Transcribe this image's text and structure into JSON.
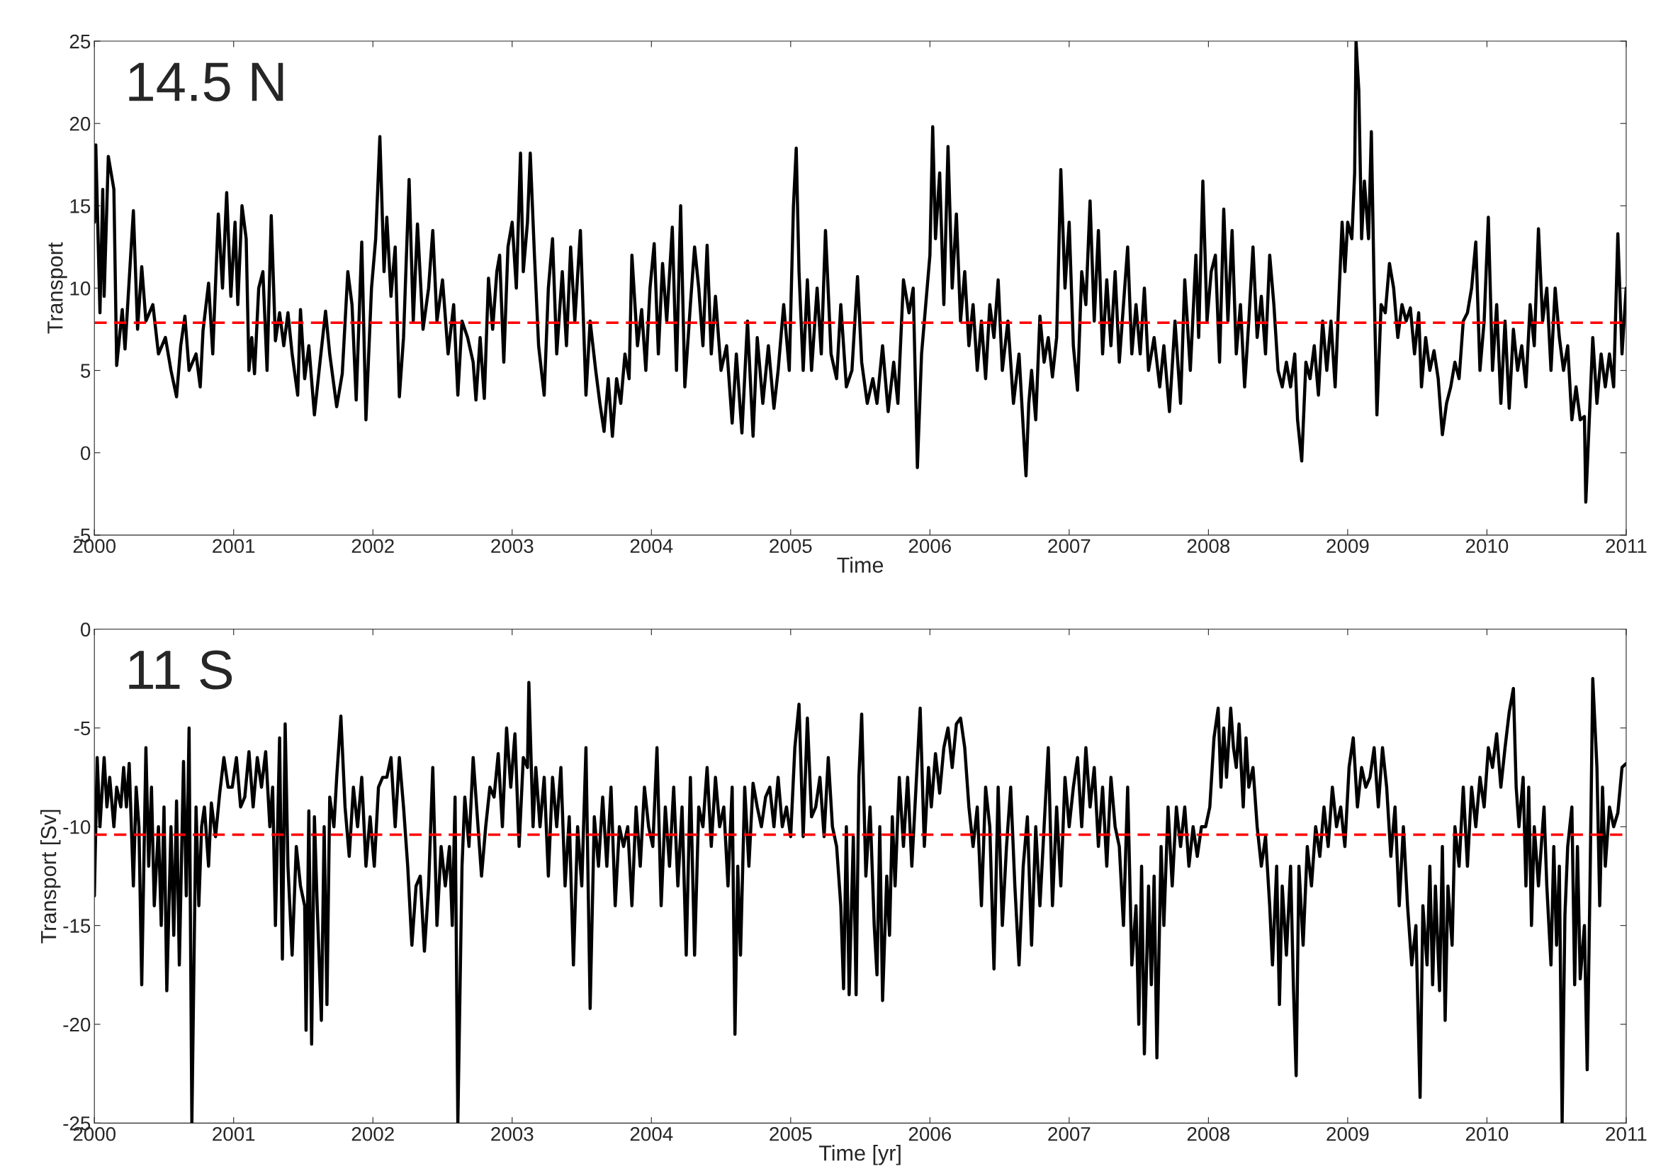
{
  "chart_data": [
    {
      "type": "line",
      "xlabel": "Time",
      "ylabel": "Transport",
      "annotations": [
        "14.5 N"
      ],
      "xlim": [
        2000,
        2011
      ],
      "xticks": [
        2000,
        2001,
        2002,
        2003,
        2004,
        2005,
        2006,
        2007,
        2008,
        2009,
        2010,
        2011
      ],
      "ylim": [
        -5,
        25
      ],
      "yticks": [
        -5,
        0,
        5,
        10,
        15,
        20,
        25
      ],
      "ref_lines": [
        {
          "axis": "y",
          "value": 7.9,
          "color": "#ff0000",
          "line_style": "dashed"
        }
      ],
      "x": [
        2000.0,
        2000.01,
        2000.04,
        2000.06,
        2000.07,
        2000.1,
        2000.14,
        2000.16,
        2000.2,
        2000.22,
        2000.25,
        2000.28,
        2000.31,
        2000.34,
        2000.37,
        2000.42,
        2000.46,
        2000.51,
        2000.55,
        2000.59,
        2000.62,
        2000.65,
        2000.68,
        2000.73,
        2000.76,
        2000.78,
        2000.82,
        2000.85,
        2000.89,
        2000.92,
        2000.95,
        2000.98,
        2001.01,
        2001.03,
        2001.06,
        2001.09,
        2001.11,
        2001.13,
        2001.15,
        2001.18,
        2001.21,
        2001.24,
        2001.27,
        2001.3,
        2001.33,
        2001.36,
        2001.39,
        2001.42,
        2001.46,
        2001.48,
        2001.51,
        2001.54,
        2001.58,
        2001.62,
        2001.66,
        2001.69,
        2001.74,
        2001.78,
        2001.82,
        2001.85,
        2001.88,
        2001.92,
        2001.95,
        2001.99,
        2002.02,
        2002.05,
        2002.08,
        2002.1,
        2002.13,
        2002.16,
        2002.19,
        2002.22,
        2002.26,
        2002.29,
        2002.32,
        2002.36,
        2002.4,
        2002.43,
        2002.46,
        2002.5,
        2002.54,
        2002.58,
        2002.61,
        2002.64,
        2002.68,
        2002.72,
        2002.74,
        2002.77,
        2002.8,
        2002.83,
        2002.86,
        2002.89,
        2002.91,
        2002.94,
        2002.97,
        2003.0,
        2003.03,
        2003.06,
        2003.08,
        2003.11,
        2003.13,
        2003.16,
        2003.19,
        2003.23,
        2003.26,
        2003.29,
        2003.32,
        2003.36,
        2003.39,
        2003.42,
        2003.45,
        2003.49,
        2003.53,
        2003.56,
        2003.6,
        2003.63,
        2003.66,
        2003.69,
        2003.72,
        2003.75,
        2003.78,
        2003.81,
        2003.84,
        2003.86,
        2003.9,
        2003.93,
        2003.96,
        2003.99,
        2004.02,
        2004.05,
        2004.08,
        2004.11,
        2004.15,
        2004.18,
        2004.21,
        2004.24,
        2004.28,
        2004.31,
        2004.34,
        2004.37,
        2004.4,
        2004.43,
        2004.46,
        2004.5,
        2004.54,
        2004.58,
        2004.61,
        2004.65,
        2004.69,
        2004.73,
        2004.76,
        2004.8,
        2004.84,
        2004.88,
        2004.91,
        2004.95,
        2004.99,
        2005.02,
        2005.04,
        2005.06,
        2005.09,
        2005.12,
        2005.15,
        2005.19,
        2005.22,
        2005.25,
        2005.29,
        2005.33,
        2005.36,
        2005.4,
        2005.44,
        2005.48,
        2005.51,
        2005.55,
        2005.59,
        2005.62,
        2005.66,
        2005.7,
        2005.74,
        2005.77,
        2005.81,
        2005.85,
        2005.88,
        2005.91,
        2005.94,
        2005.97,
        2006.0,
        2006.02,
        2006.04,
        2006.07,
        2006.1,
        2006.13,
        2006.16,
        2006.19,
        2006.22,
        2006.25,
        2006.28,
        2006.31,
        2006.34,
        2006.37,
        2006.4,
        2006.43,
        2006.46,
        2006.49,
        2006.52,
        2006.56,
        2006.6,
        2006.64,
        2006.67,
        2006.69,
        2006.71,
        2006.73,
        2006.76,
        2006.79,
        2006.82,
        2006.85,
        2006.88,
        2006.91,
        2006.94,
        2006.97,
        2007.0,
        2007.03,
        2007.06,
        2007.09,
        2007.12,
        2007.15,
        2007.18,
        2007.21,
        2007.24,
        2007.27,
        2007.3,
        2007.33,
        2007.36,
        2007.39,
        2007.42,
        2007.45,
        2007.48,
        2007.51,
        2007.54,
        2007.57,
        2007.61,
        2007.65,
        2007.68,
        2007.72,
        2007.76,
        2007.8,
        2007.83,
        2007.87,
        2007.91,
        2007.93,
        2007.96,
        2007.99,
        2008.02,
        2008.05,
        2008.08,
        2008.11,
        2008.14,
        2008.17,
        2008.2,
        2008.23,
        2008.26,
        2008.29,
        2008.32,
        2008.35,
        2008.38,
        2008.41,
        2008.44,
        2008.47,
        2008.5,
        2008.53,
        2008.56,
        2008.59,
        2008.62,
        2008.64,
        2008.67,
        2008.7,
        2008.73,
        2008.76,
        2008.79,
        2008.82,
        2008.85,
        2008.88,
        2008.91,
        2008.94,
        2008.96,
        2008.98,
        2009.0,
        2009.03,
        2009.05,
        2009.06,
        2009.08,
        2009.1,
        2009.12,
        2009.15,
        2009.17,
        2009.19,
        2009.21,
        2009.24,
        2009.27,
        2009.3,
        2009.33,
        2009.36,
        2009.39,
        2009.42,
        2009.45,
        2009.48,
        2009.51,
        2009.53,
        2009.56,
        2009.59,
        2009.62,
        2009.65,
        2009.68,
        2009.71,
        2009.74,
        2009.77,
        2009.8,
        2009.83,
        2009.86,
        2009.89,
        2009.92,
        2009.95,
        2009.98,
        2010.01,
        2010.04,
        2010.07,
        2010.1,
        2010.13,
        2010.16,
        2010.19,
        2010.22,
        2010.25,
        2010.28,
        2010.31,
        2010.34,
        2010.37,
        2010.4,
        2010.43,
        2010.46,
        2010.49,
        2010.52,
        2010.55,
        2010.58,
        2010.61,
        2010.64,
        2010.67,
        2010.7,
        2010.71,
        2010.73,
        2010.76,
        2010.79,
        2010.82,
        2010.85,
        2010.88,
        2010.91,
        2010.94,
        2010.97,
        2011.0
      ],
      "series": [
        {
          "color": "#000000",
          "values": [
            14,
            18.7,
            8.5,
            16,
            9.5,
            18,
            16,
            5.3,
            8.7,
            6.3,
            10.5,
            14.7,
            7.5,
            11.3,
            8,
            9,
            6,
            7,
            5,
            3.4,
            6.5,
            8.3,
            5,
            6,
            4,
            7.4,
            10.3,
            6,
            14.5,
            10,
            15.8,
            9.5,
            14,
            9,
            15,
            13,
            5,
            7,
            4.8,
            10,
            11,
            5,
            14.4,
            6.8,
            8.5,
            6.5,
            8.5,
            6,
            3.5,
            8.7,
            4.5,
            6.5,
            2.3,
            5.5,
            8.6,
            6,
            2.8,
            4.8,
            11,
            9,
            3.2,
            12.8,
            2,
            10,
            13,
            19.2,
            11,
            14.3,
            9.5,
            12.5,
            3.4,
            7,
            16.6,
            8,
            13.9,
            7.5,
            10,
            13.5,
            8,
            10.5,
            6,
            9,
            3.5,
            8,
            7,
            5.5,
            3.2,
            7,
            3.3,
            10.6,
            7.5,
            11,
            12,
            5.5,
            12.5,
            14,
            10,
            18.2,
            11,
            14,
            18.2,
            12,
            6.5,
            3.5,
            10,
            13,
            6,
            11,
            6.5,
            12.5,
            8,
            13.5,
            3.5,
            8,
            5,
            3,
            1.3,
            4.5,
            1,
            4.5,
            3,
            6,
            4.5,
            12,
            6.5,
            8.7,
            5,
            10,
            12.7,
            6,
            11.5,
            8,
            13.7,
            5,
            15,
            4,
            9,
            12.5,
            10,
            6.5,
            12.6,
            6,
            9.5,
            5,
            6.5,
            1.8,
            6,
            1.2,
            8,
            1,
            7,
            3,
            6.5,
            2.7,
            5,
            9,
            5,
            15,
            18.5,
            11,
            5,
            10.5,
            5,
            10,
            6,
            13.5,
            6,
            4.5,
            9,
            4,
            5,
            10.7,
            5.5,
            3,
            4.5,
            3,
            6.5,
            2.5,
            5.5,
            3,
            10.5,
            8.5,
            10,
            -0.9,
            6,
            9,
            12,
            19.8,
            13,
            17,
            9,
            18.6,
            10,
            14.5,
            8,
            11,
            6.5,
            9,
            5,
            8,
            4.5,
            9,
            7,
            10.5,
            5,
            8,
            3,
            6,
            1.5,
            -1.4,
            3,
            5,
            2,
            8.3,
            5.5,
            7,
            4.6,
            7,
            17.2,
            10,
            14,
            6.5,
            3.8,
            11,
            9,
            15.3,
            8,
            13.5,
            6,
            10.5,
            6.5,
            11,
            5.5,
            9,
            12.5,
            6,
            9,
            6,
            10,
            5,
            7,
            4,
            6.5,
            2.5,
            8,
            3,
            10.5,
            5,
            12,
            7,
            16.5,
            8,
            11,
            12,
            5.5,
            14.8,
            8,
            13.5,
            6,
            9,
            4,
            8,
            12.5,
            7,
            9.5,
            6,
            12,
            9,
            5,
            4,
            5.5,
            4,
            6,
            2,
            -0.5,
            5.5,
            4.5,
            6.5,
            3.5,
            8,
            5,
            8,
            4,
            10,
            14,
            11,
            14,
            13,
            17,
            25,
            22,
            13,
            16.5,
            13,
            19.5,
            10,
            2.3,
            9,
            8.5,
            11.5,
            10,
            7,
            9,
            8,
            8.8,
            6,
            8.5,
            4,
            7,
            5,
            6.2,
            4.5,
            1.1,
            3,
            4,
            5.5,
            4.5,
            8,
            8.5,
            10,
            12.8,
            5,
            8,
            14.3,
            5,
            9,
            3,
            8,
            2.7,
            7.5,
            5,
            6.5,
            4,
            9,
            6.5,
            13.6,
            8,
            10,
            5,
            10,
            7,
            5,
            6.5,
            2,
            4,
            2,
            2.2,
            -3,
            1,
            7,
            3,
            6,
            4,
            6,
            4,
            13.3,
            6,
            10
          ]
        }
      ]
    },
    {
      "type": "line",
      "xlabel": "Time [yr]",
      "ylabel": "Transport [Sv]",
      "annotations": [
        "11 S"
      ],
      "xlim": [
        2000,
        2011
      ],
      "xticks": [
        2000,
        2001,
        2002,
        2003,
        2004,
        2005,
        2006,
        2007,
        2008,
        2009,
        2010,
        2011
      ],
      "ylim": [
        -25,
        0
      ],
      "yticks": [
        -25,
        -20,
        -15,
        -10,
        -5,
        0
      ],
      "ref_lines": [
        {
          "axis": "y",
          "value": -10.4,
          "color": "#ff0000",
          "line_style": "dashed"
        }
      ],
      "x": [
        2000.0,
        2000.02,
        2000.04,
        2000.07,
        2000.09,
        2000.11,
        2000.14,
        2000.16,
        2000.19,
        2000.21,
        2000.23,
        2000.25,
        2000.28,
        2000.3,
        2000.32,
        2000.34,
        2000.37,
        2000.39,
        2000.41,
        2000.43,
        2000.46,
        2000.48,
        2000.5,
        2000.52,
        2000.55,
        2000.57,
        2000.59,
        2000.61,
        2000.64,
        2000.66,
        2000.68,
        2000.7,
        2000.73,
        2000.75,
        2000.77,
        2000.79,
        2000.82,
        2000.84,
        2000.87,
        2000.9,
        2000.93,
        2000.96,
        2000.99,
        2001.02,
        2001.05,
        2001.08,
        2001.11,
        2001.14,
        2001.17,
        2001.2,
        2001.23,
        2001.26,
        2001.28,
        2001.3,
        2001.33,
        2001.35,
        2001.37,
        2001.39,
        2001.42,
        2001.45,
        2001.48,
        2001.51,
        2001.52,
        2001.54,
        2001.56,
        2001.58,
        2001.6,
        2001.63,
        2001.65,
        2001.67,
        2001.69,
        2001.72,
        2001.74,
        2001.77,
        2001.8,
        2001.83,
        2001.86,
        2001.89,
        2001.92,
        2001.95,
        2001.98,
        2002.01,
        2002.04,
        2002.07,
        2002.1,
        2002.13,
        2002.16,
        2002.19,
        2002.22,
        2002.25,
        2002.28,
        2002.31,
        2002.34,
        2002.37,
        2002.4,
        2002.43,
        2002.46,
        2002.49,
        2002.52,
        2002.55,
        2002.57,
        2002.59,
        2002.61,
        2002.64,
        2002.66,
        2002.69,
        2002.72,
        2002.75,
        2002.78,
        2002.81,
        2002.84,
        2002.87,
        2002.9,
        2002.93,
        2002.96,
        2002.99,
        2003.02,
        2003.05,
        2003.08,
        2003.11,
        2003.12,
        2003.15,
        2003.17,
        2003.2,
        2003.23,
        2003.26,
        2003.29,
        2003.32,
        2003.35,
        2003.38,
        2003.41,
        2003.44,
        2003.47,
        2003.5,
        2003.53,
        2003.56,
        2003.59,
        2003.62,
        2003.65,
        2003.68,
        2003.71,
        2003.74,
        2003.77,
        2003.8,
        2003.83,
        2003.86,
        2003.89,
        2003.92,
        2003.95,
        2003.98,
        2004.01,
        2004.04,
        2004.07,
        2004.1,
        2004.13,
        2004.16,
        2004.19,
        2004.22,
        2004.25,
        2004.28,
        2004.31,
        2004.34,
        2004.37,
        2004.4,
        2004.43,
        2004.46,
        2004.49,
        2004.52,
        2004.55,
        2004.58,
        2004.6,
        2004.62,
        2004.64,
        2004.67,
        2004.7,
        2004.73,
        2004.76,
        2004.79,
        2004.82,
        2004.85,
        2004.88,
        2004.91,
        2004.94,
        2004.97,
        2005.0,
        2005.03,
        2005.06,
        2005.09,
        2005.12,
        2005.15,
        2005.18,
        2005.21,
        2005.24,
        2005.27,
        2005.3,
        2005.33,
        2005.36,
        2005.38,
        2005.4,
        2005.42,
        2005.45,
        2005.47,
        2005.49,
        2005.51,
        2005.54,
        2005.57,
        2005.6,
        2005.62,
        2005.64,
        2005.66,
        2005.69,
        2005.71,
        2005.73,
        2005.75,
        2005.78,
        2005.81,
        2005.84,
        2005.87,
        2005.9,
        2005.93,
        2005.96,
        2005.99,
        2006.01,
        2006.04,
        2006.07,
        2006.1,
        2006.13,
        2006.16,
        2006.19,
        2006.22,
        2006.25,
        2006.28,
        2006.31,
        2006.34,
        2006.37,
        2006.4,
        2006.43,
        2006.46,
        2006.49,
        2006.52,
        2006.55,
        2006.58,
        2006.61,
        2006.64,
        2006.67,
        2006.7,
        2006.73,
        2006.76,
        2006.79,
        2006.82,
        2006.85,
        2006.88,
        2006.91,
        2006.94,
        2006.97,
        2007.0,
        2007.03,
        2007.06,
        2007.09,
        2007.12,
        2007.15,
        2007.18,
        2007.21,
        2007.24,
        2007.27,
        2007.3,
        2007.33,
        2007.36,
        2007.39,
        2007.42,
        2007.45,
        2007.48,
        2007.5,
        2007.52,
        2007.54,
        2007.57,
        2007.59,
        2007.61,
        2007.63,
        2007.66,
        2007.68,
        2007.71,
        2007.74,
        2007.77,
        2007.8,
        2007.83,
        2007.86,
        2007.89,
        2007.92,
        2007.95,
        2007.98,
        2008.01,
        2008.04,
        2008.07,
        2008.09,
        2008.11,
        2008.13,
        2008.16,
        2008.18,
        2008.2,
        2008.22,
        2008.25,
        2008.27,
        2008.29,
        2008.32,
        2008.35,
        2008.38,
        2008.41,
        2008.44,
        2008.46,
        2008.49,
        2008.51,
        2008.53,
        2008.56,
        2008.59,
        2008.61,
        2008.63,
        2008.65,
        2008.68,
        2008.71,
        2008.74,
        2008.77,
        2008.8,
        2008.83,
        2008.86,
        2008.89,
        2008.92,
        2008.95,
        2008.98,
        2009.01,
        2009.04,
        2009.07,
        2009.1,
        2009.13,
        2009.16,
        2009.19,
        2009.22,
        2009.25,
        2009.28,
        2009.31,
        2009.34,
        2009.37,
        2009.4,
        2009.43,
        2009.46,
        2009.49,
        2009.52,
        2009.54,
        2009.57,
        2009.59,
        2009.61,
        2009.63,
        2009.66,
        2009.68,
        2009.7,
        2009.72,
        2009.75,
        2009.77,
        2009.8,
        2009.83,
        2009.86,
        2009.89,
        2009.92,
        2009.95,
        2009.98,
        2010.01,
        2010.04,
        2010.07,
        2010.1,
        2010.13,
        2010.16,
        2010.19,
        2010.21,
        2010.23,
        2010.26,
        2010.28,
        2010.3,
        2010.32,
        2010.34,
        2010.37,
        2010.39,
        2010.41,
        2010.43,
        2010.46,
        2010.48,
        2010.5,
        2010.52,
        2010.54,
        2010.56,
        2010.58,
        2010.61,
        2010.63,
        2010.65,
        2010.67,
        2010.7,
        2010.72,
        2010.74,
        2010.76,
        2010.79,
        2010.81,
        2010.83,
        2010.85,
        2010.88,
        2010.91,
        2010.94,
        2010.97,
        2011.0
      ],
      "series": [
        {
          "color": "#000000",
          "values": [
            -13.5,
            -6.5,
            -10,
            -6.5,
            -9,
            -7.5,
            -10,
            -8,
            -9,
            -7,
            -9,
            -6.8,
            -13,
            -8,
            -10,
            -18,
            -6,
            -12,
            -8,
            -14,
            -10,
            -15,
            -9,
            -18.3,
            -10,
            -15.5,
            -8.7,
            -17,
            -6.7,
            -13.5,
            -5,
            -25,
            -9,
            -14,
            -10,
            -9,
            -12,
            -8.8,
            -10.5,
            -8.3,
            -6.5,
            -8,
            -8,
            -6.5,
            -9,
            -8.5,
            -6.2,
            -9,
            -6.5,
            -8,
            -6.2,
            -10,
            -8,
            -15,
            -5.5,
            -16.7,
            -4.8,
            -12,
            -16.5,
            -11,
            -13,
            -14,
            -20.3,
            -9.2,
            -21,
            -9.5,
            -14,
            -19.8,
            -10,
            -19,
            -8.5,
            -10,
            -7.5,
            -4.4,
            -9,
            -11.5,
            -8,
            -10,
            -7.5,
            -12,
            -9.5,
            -12,
            -8,
            -7.5,
            -7.5,
            -6.5,
            -10,
            -6.5,
            -9,
            -12,
            -16,
            -13,
            -12.5,
            -16.3,
            -13,
            -7,
            -15,
            -11,
            -13,
            -11,
            -15,
            -8.5,
            -25,
            -12,
            -8.5,
            -11,
            -6.5,
            -9.5,
            -12.5,
            -10,
            -8,
            -8.5,
            -6.3,
            -10,
            -5,
            -8,
            -5.3,
            -11,
            -6.5,
            -7,
            -2.7,
            -10,
            -7,
            -10,
            -7.5,
            -12.5,
            -7.5,
            -10,
            -7,
            -13,
            -9.5,
            -17,
            -10,
            -13,
            -6,
            -19.2,
            -9.5,
            -12,
            -8.5,
            -12,
            -8,
            -14,
            -10,
            -11,
            -10,
            -14,
            -9,
            -12,
            -8,
            -10,
            -11,
            -6,
            -14,
            -9,
            -12,
            -8,
            -13,
            -9,
            -16.5,
            -7.5,
            -16.5,
            -9,
            -10,
            -7,
            -11,
            -7.5,
            -10,
            -9,
            -13,
            -8,
            -20.5,
            -12,
            -16.5,
            -8,
            -12,
            -7.8,
            -9,
            -10,
            -8.5,
            -8,
            -10,
            -7.5,
            -10,
            -9,
            -10.5,
            -6,
            -3.8,
            -10.5,
            -4.5,
            -9.5,
            -9,
            -7.5,
            -10.5,
            -6.5,
            -10,
            -11,
            -14,
            -18.2,
            -10,
            -18.5,
            -10.5,
            -18.5,
            -7.5,
            -4.3,
            -12.5,
            -9,
            -15,
            -17.5,
            -10,
            -18.8,
            -12.5,
            -15.5,
            -9.5,
            -13,
            -7.5,
            -11,
            -7.5,
            -12,
            -8,
            -4,
            -11,
            -7,
            -9,
            -6.3,
            -8.3,
            -6,
            -5,
            -7,
            -4.8,
            -4.5,
            -6,
            -9,
            -11,
            -9,
            -14,
            -8,
            -10,
            -17.2,
            -8,
            -15,
            -11,
            -8,
            -13,
            -17,
            -12,
            -9.5,
            -16,
            -10,
            -14,
            -10,
            -6,
            -14,
            -9,
            -13,
            -7.5,
            -10,
            -8,
            -6.5,
            -10,
            -6,
            -9,
            -7,
            -11,
            -8,
            -12,
            -7.5,
            -10,
            -11,
            -15,
            -8,
            -17,
            -14,
            -20,
            -12,
            -21.5,
            -13,
            -18,
            -12.5,
            -21.7,
            -11,
            -15,
            -9,
            -13,
            -9,
            -11,
            -9,
            -12,
            -10,
            -11.5,
            -10,
            -10,
            -9,
            -5.5,
            -4,
            -8,
            -5,
            -7.5,
            -4,
            -6,
            -7,
            -4.8,
            -9,
            -5.5,
            -8,
            -7,
            -10,
            -12,
            -10.5,
            -14,
            -17,
            -12,
            -19,
            -13,
            -16.5,
            -12,
            -18,
            -22.6,
            -12,
            -16,
            -11,
            -13,
            -10,
            -11.5,
            -9,
            -11,
            -8,
            -10,
            -9,
            -11,
            -7,
            -5.5,
            -9,
            -7,
            -8,
            -7.5,
            -6,
            -9,
            -6,
            -8,
            -11.5,
            -9,
            -14,
            -10,
            -14,
            -17,
            -15,
            -23.7,
            -14,
            -17,
            -12,
            -18,
            -13,
            -18.3,
            -11,
            -19.8,
            -13,
            -16,
            -10,
            -12,
            -8,
            -12,
            -8,
            -10,
            -7.5,
            -9,
            -6,
            -7,
            -5.3,
            -8,
            -6,
            -4.2,
            -3,
            -8,
            -10,
            -7.5,
            -13,
            -8,
            -15,
            -10,
            -13,
            -11,
            -9,
            -13,
            -17,
            -11,
            -16,
            -12,
            -25,
            -14.5,
            -11,
            -9,
            -18,
            -11,
            -17.7,
            -15,
            -22.3,
            -13,
            -2.5,
            -7,
            -14,
            -8,
            -12,
            -9,
            -10,
            -9.3,
            -7,
            -6.8
          ]
        }
      ]
    }
  ]
}
